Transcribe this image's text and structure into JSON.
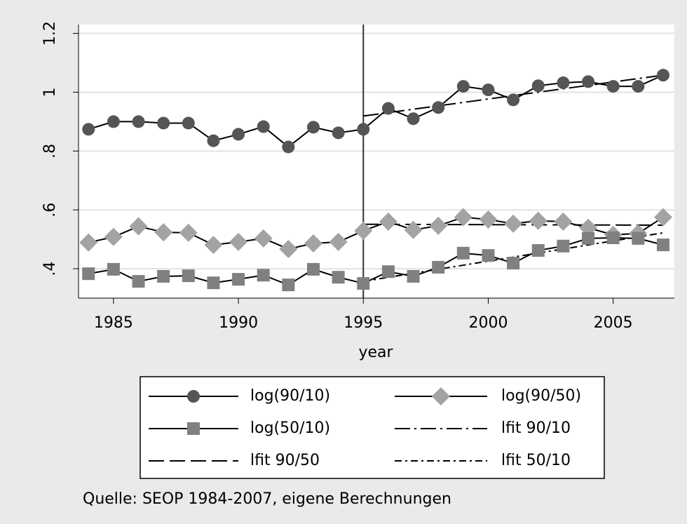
{
  "chart_data": {
    "type": "line",
    "x_label": "year",
    "note": "Quelle: SEOP 1984-2007, eigene Berechnungen",
    "x": [
      1984,
      1985,
      1986,
      1987,
      1988,
      1989,
      1990,
      1991,
      1992,
      1993,
      1994,
      1995,
      1996,
      1997,
      1998,
      1999,
      2000,
      2001,
      2002,
      2003,
      2004,
      2005,
      2006,
      2007
    ],
    "xlim": [
      1983.6,
      2007.45
    ],
    "xticks": [
      1985,
      1990,
      1995,
      2000,
      2005
    ],
    "ylim": [
      0.3,
      1.23
    ],
    "yticks": [
      {
        "value": 0.4,
        "label": ".4"
      },
      {
        "value": 0.6,
        "label": ".6"
      },
      {
        "value": 0.8,
        "label": ".8"
      },
      1,
      1.2
    ],
    "grid": true,
    "xline": 1995,
    "series": [
      {
        "name": "log(90/10)",
        "color": "#555555",
        "marker": "circle",
        "line_style": "solid",
        "values": [
          0.874,
          0.9,
          0.9,
          0.895,
          0.895,
          0.835,
          0.857,
          0.883,
          0.814,
          0.881,
          0.862,
          0.874,
          0.945,
          0.91,
          0.948,
          1.02,
          1.008,
          0.974,
          1.022,
          1.032,
          1.036,
          1.02,
          1.02,
          1.058
        ]
      },
      {
        "name": "log(90/50)",
        "color": "#a3a3a3",
        "marker": "diamond",
        "line_style": "solid",
        "values": [
          0.489,
          0.508,
          0.544,
          0.524,
          0.522,
          0.481,
          0.491,
          0.503,
          0.467,
          0.486,
          0.491,
          0.529,
          0.56,
          0.532,
          0.546,
          0.575,
          0.567,
          0.553,
          0.563,
          0.56,
          0.539,
          0.515,
          0.52,
          0.575
        ]
      },
      {
        "name": "log(50/10)",
        "color": "#808080",
        "marker": "square",
        "line_style": "solid",
        "values": [
          0.383,
          0.398,
          0.357,
          0.374,
          0.376,
          0.352,
          0.364,
          0.378,
          0.345,
          0.398,
          0.371,
          0.35,
          0.39,
          0.374,
          0.405,
          0.453,
          0.445,
          0.419,
          0.462,
          0.477,
          0.503,
          0.505,
          0.503,
          0.481
        ]
      },
      {
        "name": "lfit 90/10",
        "color": "#000000",
        "line_style": "long-dash-dot",
        "x": [
          1995,
          2007
        ],
        "values": [
          0.919,
          1.058
        ]
      },
      {
        "name": "lfit 90/50",
        "color": "#000000",
        "line_style": "long-dash",
        "x": [
          1995,
          2007
        ],
        "values": [
          0.551,
          0.548
        ]
      },
      {
        "name": "lfit 50/10",
        "color": "#000000",
        "line_style": "short-dash-dot",
        "x": [
          1995,
          2007
        ],
        "values": [
          0.357,
          0.522
        ]
      }
    ]
  }
}
